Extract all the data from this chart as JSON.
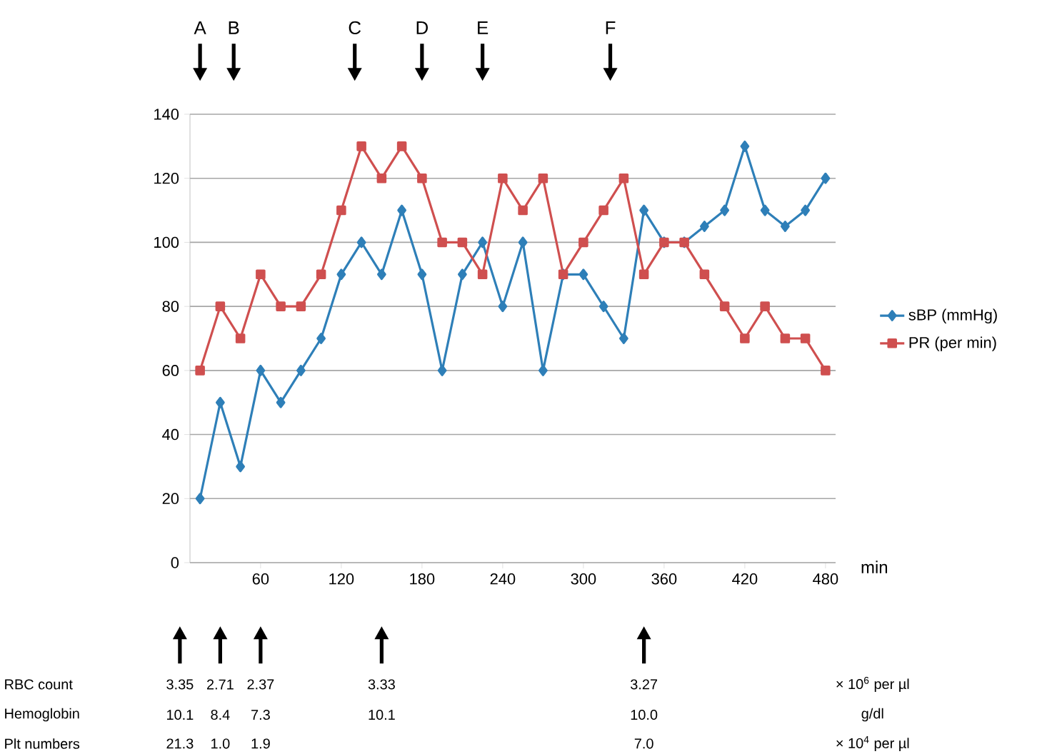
{
  "chart_data": {
    "type": "line",
    "x": [
      15,
      30,
      45,
      60,
      75,
      90,
      105,
      120,
      135,
      150,
      165,
      180,
      195,
      210,
      225,
      240,
      255,
      270,
      285,
      300,
      315,
      330,
      345,
      360,
      375,
      390,
      405,
      420,
      435,
      450,
      465,
      480
    ],
    "series": [
      {
        "name": "sBP (mmHg)",
        "color": "#2e7fb8",
        "marker": "diamond",
        "values": [
          20,
          50,
          30,
          60,
          50,
          60,
          70,
          90,
          100,
          90,
          110,
          90,
          60,
          90,
          100,
          80,
          100,
          60,
          90,
          90,
          80,
          70,
          110,
          100,
          100,
          105,
          110,
          130,
          110,
          105,
          110,
          120
        ]
      },
      {
        "name": "PR (per min)",
        "color": "#cf4f4f",
        "marker": "square",
        "values": [
          60,
          80,
          70,
          90,
          80,
          80,
          90,
          110,
          130,
          120,
          130,
          120,
          100,
          100,
          90,
          120,
          110,
          120,
          90,
          100,
          110,
          120,
          90,
          100,
          100,
          90,
          80,
          70,
          80,
          70,
          70,
          60
        ]
      }
    ],
    "xlabel": "min",
    "xlim": [
      7.5,
      487.5
    ],
    "xticks": [
      60,
      120,
      180,
      240,
      300,
      360,
      420,
      480
    ],
    "ylim": [
      0,
      140
    ],
    "yticks": [
      0,
      20,
      40,
      60,
      80,
      100,
      120,
      140
    ],
    "grid": "y",
    "legend": "right",
    "annotations": [
      "A",
      "B",
      "C",
      "D",
      "E",
      "F",
      "RBC count",
      "3.35",
      "2.71",
      "2.37",
      "3.33",
      "3.27",
      "× 10$^{6}$ per µl",
      "Hemoglobin",
      "10.1",
      "8.4",
      "7.3",
      "10.1",
      "10.0",
      "g/dl",
      "Plt numbers",
      "21.3",
      "1.0",
      "1.9",
      "7.0",
      "× 10$^{4}$ per µl"
    ]
  }
}
